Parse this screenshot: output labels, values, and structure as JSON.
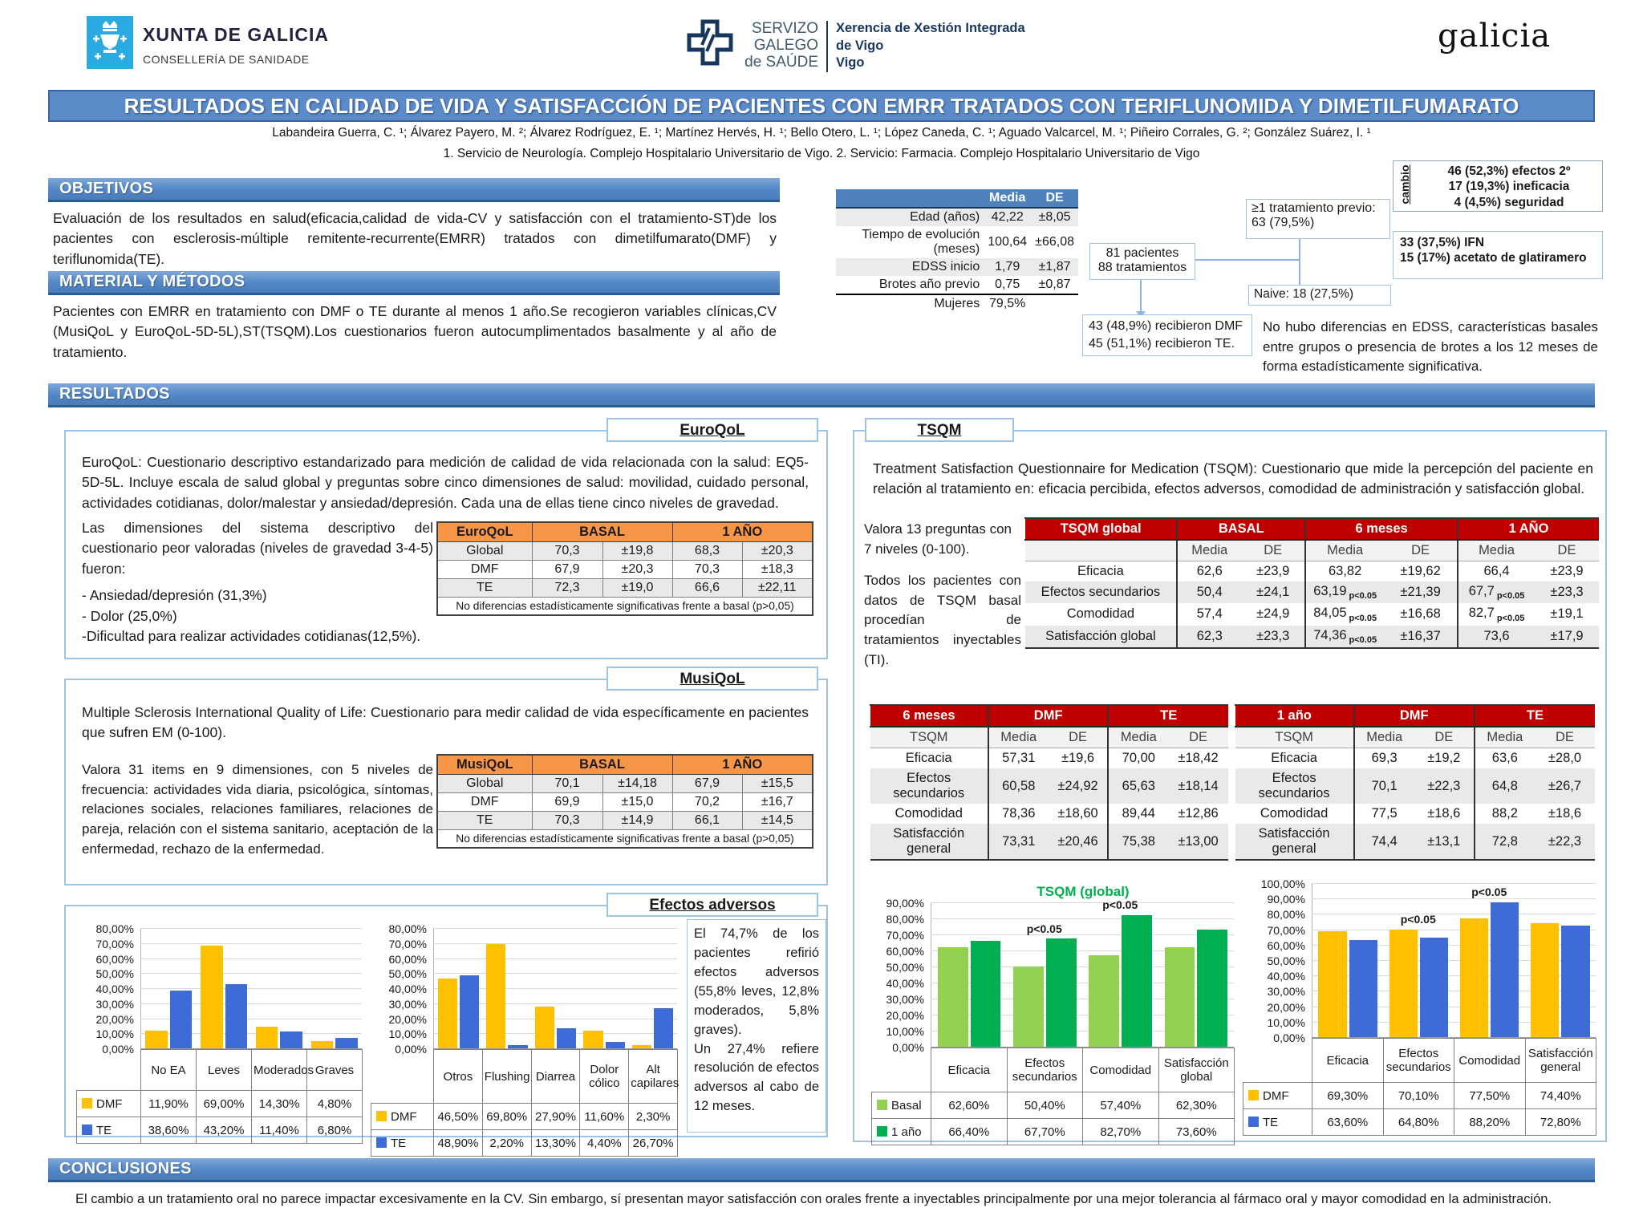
{
  "header": {
    "xunta": {
      "title": "XUNTA DE GALICIA",
      "subtitle": "CONSELLERÍA DE SANIDADE"
    },
    "sergas": {
      "l1": "SERVIZO",
      "l2": "GALEGO",
      "l3": "de SAÚDE",
      "x1": "Xerencia de Xestión Integrada",
      "x2": "de Vigo",
      "x3": "Vigo"
    },
    "galicia": "galicia"
  },
  "title": "RESULTADOS EN CALIDAD DE VIDA Y SATISFACCIÓN DE PACIENTES CON EMRR TRATADOS CON TERIFLUNOMIDA Y DIMETILFUMARATO",
  "authors": "Labandeira Guerra, C. ¹; Álvarez Payero, M. ²; Álvarez Rodríguez, E. ¹; Martínez Hervés, H. ¹; Bello Otero, L. ¹; López Caneda, C. ¹; Aguado Valcarcel, M. ¹; Piñeiro Corrales, G. ²; González Suárez, I. ¹",
  "affiliations": "1. Servicio de Neurología. Complejo Hospitalario Universitario de Vigo. 2. Servicio: Farmacia. Complejo Hospitalario Universitario de Vigo",
  "sections": {
    "objetivos": "OBJETIVOS",
    "material": "MATERIAL Y MÉTODOS",
    "resultados": "RESULTADOS",
    "conclusiones": "CONCLUSIONES"
  },
  "objetivos_text": "Evaluación de los resultados en salud(eficacia,calidad de vida-CV y satisfacción con el tratamiento-ST)de los pacientes con esclerosis-múltiple remitente-recurrente(EMRR) tratados con dimetilfumarato(DMF) y teriflunomida(TE).",
  "material_text": "Pacientes con EMRR en tratamiento con DMF o TE durante al menos 1 año.Se recogieron variables clínicas,CV (MusiQoL y EuroQoL-5D-5L),ST(TSQM).Los cuestionarios fueron autocumplimentados basalmente y al año de tratamiento.",
  "demographics": {
    "headers": [
      "Media",
      "DE"
    ],
    "rows": [
      [
        "Edad (años)",
        "42,22",
        "±8,05"
      ],
      [
        "Tiempo de evolución (meses)",
        "100,64",
        "±66,08"
      ],
      [
        "EDSS inicio",
        "1,79",
        "±1,87"
      ],
      [
        "Brotes año previo",
        "0,75",
        "±0,87"
      ],
      [
        "Mujeres",
        "79,5%",
        ""
      ]
    ]
  },
  "flow": {
    "patients": [
      "81 pacientes",
      "88 tratamientos"
    ],
    "previous": "≥1 tratamiento previo: 63 (79,5%)",
    "cambio_label": "cambio",
    "cambio": [
      "46 (52,3%) efectos 2º",
      "17 (19,3%) ineficacia",
      "4 (4,5%) seguridad"
    ],
    "previous_drugs": [
      "33 (37,5%) IFN",
      "15 (17%) acetato de glatiramero"
    ],
    "naive": "Naive: 18 (27,5%)",
    "received": [
      "43 (48,9%) recibieron DMF",
      "45 (51,1%) recibieron TE."
    ],
    "note": "No hubo diferencias en EDSS, características basales entre grupos o presencia de brotes a los 12 meses de forma estadísticamente significativa."
  },
  "euroqol": {
    "label": "EuroQoL",
    "desc": "EuroQoL: Cuestionario descriptivo estandarizado para medición de calidad de vida relacionada con la salud: EQ5-5D-5L. Incluye escala de salud global y preguntas sobre cinco dimensiones de salud: movilidad, cuidado personal, actividades cotidianas, dolor/malestar y ansiedad/depresión. Cada una de ellas tiene cinco niveles de gravedad.",
    "dims_intro": "Las dimensiones del sistema descriptivo del cuestionario peor valoradas (niveles de gravedad 3-4-5) fueron:",
    "dims": [
      "- Ansiedad/depresión (31,3%)",
      "- Dolor (25,0%)",
      "-Dificultad para realizar actividades cotidianas(12,5%)."
    ],
    "table": {
      "label": "EuroQoL",
      "groups": [
        "BASAL",
        "1 AÑO"
      ],
      "rows": [
        [
          "Global",
          "70,3",
          "±19,8",
          "68,3",
          "±20,3"
        ],
        [
          "DMF",
          "67,9",
          "±20,3",
          "70,3",
          "±18,3"
        ],
        [
          "TE",
          "72,3",
          "±19,0",
          "66,6",
          "±22,11"
        ]
      ],
      "footnote": "No diferencias estadísticamente significativas frente a basal (p>0,05)"
    }
  },
  "musiqol": {
    "label": "MusiQoL",
    "desc": "Multiple Sclerosis International Quality of Life: Cuestionario para medir calidad de vida específicamente en pacientes que sufren EM (0-100).",
    "valora": "Valora 31 items en 9 dimensiones, con 5 niveles de frecuencia: actividades vida diaria, psicológica, síntomas, relaciones sociales, relaciones familiares, relaciones de pareja, relación con el sistema sanitario, aceptación de la enfermedad, rechazo de la enfermedad.",
    "table": {
      "label": "MusiQoL",
      "groups": [
        "BASAL",
        "1 AÑO"
      ],
      "rows": [
        [
          "Global",
          "70,1",
          "±14,18",
          "67,9",
          "±15,5"
        ],
        [
          "DMF",
          "69,9",
          "±15,0",
          "70,2",
          "±16,7"
        ],
        [
          "TE",
          "70,3",
          "±14,9",
          "66,1",
          "±14,5"
        ]
      ],
      "footnote": "No diferencias estadísticamente significativas frente a basal (p>0,05)"
    }
  },
  "tsqm": {
    "label": "TSQM",
    "desc": "Treatment Satisfaction Questionnaire for Medication (TSQM): Cuestionario que mide la percepción del paciente en relación al tratamiento en: eficacia percibida, efectos adversos, comodidad de administración y satisfacción global.",
    "side1": "Valora 13 preguntas con 7 niveles (0-100).",
    "side2": "Todos los pacientes con datos de TSQM basal procedían de tratamientos inyectables (TI).",
    "global_table": {
      "label": "TSQM global",
      "groups": [
        "BASAL",
        "6 meses",
        "1 AÑO"
      ],
      "sub": [
        "Media",
        "DE"
      ],
      "rows": [
        [
          "Eficacia",
          "62,6",
          "±23,9",
          "63,82",
          "",
          "±19,62",
          "66,4",
          "",
          "±23,9"
        ],
        [
          "Efectos secundarios",
          "50,4",
          "±24,1",
          "63,19",
          "p<0.05",
          "±21,39",
          "67,7",
          "p<0.05",
          "±23,3"
        ],
        [
          "Comodidad",
          "57,4",
          "±24,9",
          "84,05",
          "p<0.05",
          "±16,68",
          "82,7",
          "p<0.05",
          "±19,1"
        ],
        [
          "Satisfacción global",
          "62,3",
          "±23,3",
          "74,36",
          "p<0.05",
          "±16,37",
          "73,6",
          "",
          "±17,9"
        ]
      ]
    }
  },
  "tsqm_6m": {
    "label": "6 meses",
    "sub_label": "TSQM",
    "groups": [
      "DMF",
      "TE"
    ],
    "sub": [
      "Media",
      "DE"
    ],
    "rows": [
      [
        "Eficacia",
        "57,31",
        "±19,6",
        "70,00",
        "±18,42"
      ],
      [
        "Efectos secundarios",
        "60,58",
        "±24,92",
        "65,63",
        "±18,14"
      ],
      [
        "Comodidad",
        "78,36",
        "±18,60",
        "89,44",
        "±12,86"
      ],
      [
        "Satisfacción general",
        "73,31",
        "±20,46",
        "75,38",
        "±13,00"
      ]
    ]
  },
  "tsqm_1y": {
    "label": "1 año",
    "sub_label": "TSQM",
    "groups": [
      "DMF",
      "TE"
    ],
    "sub": [
      "Media",
      "DE"
    ],
    "rows": [
      [
        "Eficacia",
        "69,3",
        "±19,2",
        "63,6",
        "±28,0"
      ],
      [
        "Efectos secundarios",
        "70,1",
        "±22,3",
        "64,8",
        "±26,7"
      ],
      [
        "Comodidad",
        "77,5",
        "±18,6",
        "88,2",
        "±18,6"
      ],
      [
        "Satisfacción general",
        "74,4",
        "±13,1",
        "72,8",
        "±22,3"
      ]
    ]
  },
  "efectos": {
    "label": "Efectos adversos",
    "p1": "El 74,7% de los pacientes refirió efectos adversos (55,8% leves, 12,8% moderados, 5,8% graves).",
    "p2": "Un 27,4% refiere resolución de efectos adversos al cabo de 12 meses."
  },
  "conclusiones_text": "El cambio a un tratamiento oral no parece impactar excesivamente en la CV. Sin embargo, sí presentan mayor satisfacción con orales frente a inyectables principalmente por una mejor tolerancia al fármaco oral y mayor comodidad en la administración.",
  "colors": {
    "band_blue": "#5286C5",
    "table_header_blue": "#4F81BD",
    "orange": "#F79646",
    "red": "#C00000",
    "dmf_yellow": "#FFC000",
    "te_blue": "#3E6BD5",
    "basal_green": "#92D050",
    "year_green": "#00B050",
    "box_border": "#9DC3E6"
  },
  "chart_data": [
    {
      "id": "severity",
      "type": "bar",
      "categories": [
        "No EA",
        "Leves",
        "Moderados",
        "Graves"
      ],
      "series": [
        {
          "name": "DMF",
          "color": "#FFC000",
          "values": [
            11.9,
            69.0,
            14.3,
            4.8
          ],
          "labels": [
            "11,90%",
            "69,00%",
            "14,30%",
            "4,80%"
          ]
        },
        {
          "name": "TE",
          "color": "#3E6BD5",
          "values": [
            38.6,
            43.2,
            11.4,
            6.8
          ],
          "labels": [
            "38,60%",
            "43,20%",
            "11,40%",
            "6,80%"
          ]
        }
      ],
      "ylim": [
        0,
        80
      ],
      "ytick_step": 10,
      "grid": true,
      "legend_position": "table-left"
    },
    {
      "id": "adverse_types",
      "type": "bar",
      "categories": [
        "Otros",
        "Flushing",
        "Diarrea",
        "Dolor cólico",
        "Alt capilares"
      ],
      "series": [
        {
          "name": "DMF",
          "color": "#FFC000",
          "values": [
            46.5,
            69.8,
            27.9,
            11.6,
            2.3
          ],
          "labels": [
            "46,50%",
            "69,80%",
            "27,90%",
            "11,60%",
            "2,30%"
          ]
        },
        {
          "name": "TE",
          "color": "#3E6BD5",
          "values": [
            48.9,
            2.2,
            13.3,
            4.4,
            26.7
          ],
          "labels": [
            "48,90%",
            "2,20%",
            "13,30%",
            "4,40%",
            "26,70%"
          ]
        }
      ],
      "ylim": [
        0,
        80
      ],
      "ytick_step": 10,
      "grid": true,
      "legend_position": "table-left"
    },
    {
      "id": "tsqm_global",
      "type": "bar",
      "title": "TSQM (global)",
      "title_color": "#00B050",
      "categories": [
        "Eficacia",
        "Efectos secundarios",
        "Comodidad",
        "Satisfacción global"
      ],
      "series": [
        {
          "name": "Basal",
          "color": "#92D050",
          "values": [
            62.6,
            50.4,
            57.4,
            62.3
          ],
          "labels": [
            "62,60%",
            "50,40%",
            "57,40%",
            "62,30%"
          ]
        },
        {
          "name": "1 año",
          "color": "#00B050",
          "values": [
            66.4,
            67.7,
            82.7,
            73.6
          ],
          "labels": [
            "66,40%",
            "67,70%",
            "82,70%",
            "73,60%"
          ]
        }
      ],
      "ylim": [
        0,
        90
      ],
      "ytick_step": 10,
      "grid": true,
      "legend_position": "table-left",
      "annotations": [
        {
          "category_index": 1,
          "text": "p<0.05"
        },
        {
          "category_index": 2,
          "text": "p<0.05"
        }
      ]
    },
    {
      "id": "tsqm_dmf_te_1y",
      "type": "bar",
      "categories": [
        "Eficacia",
        "Efectos secundarios",
        "Comodidad",
        "Satisfacción general"
      ],
      "series": [
        {
          "name": "DMF",
          "color": "#FFC000",
          "values": [
            69.3,
            70.1,
            77.5,
            74.4
          ],
          "labels": [
            "69,30%",
            "70,10%",
            "77,50%",
            "74,40%"
          ]
        },
        {
          "name": "TE",
          "color": "#3E6BD5",
          "values": [
            63.6,
            64.8,
            88.2,
            72.8
          ],
          "labels": [
            "63,60%",
            "64,80%",
            "88,20%",
            "72,80%"
          ]
        }
      ],
      "ylim": [
        0,
        100
      ],
      "ytick_step": 10,
      "grid": true,
      "legend_position": "table-left",
      "annotations": [
        {
          "category_index": 1,
          "text": "p<0.05"
        },
        {
          "category_index": 2,
          "text": "p<0.05"
        }
      ]
    }
  ]
}
